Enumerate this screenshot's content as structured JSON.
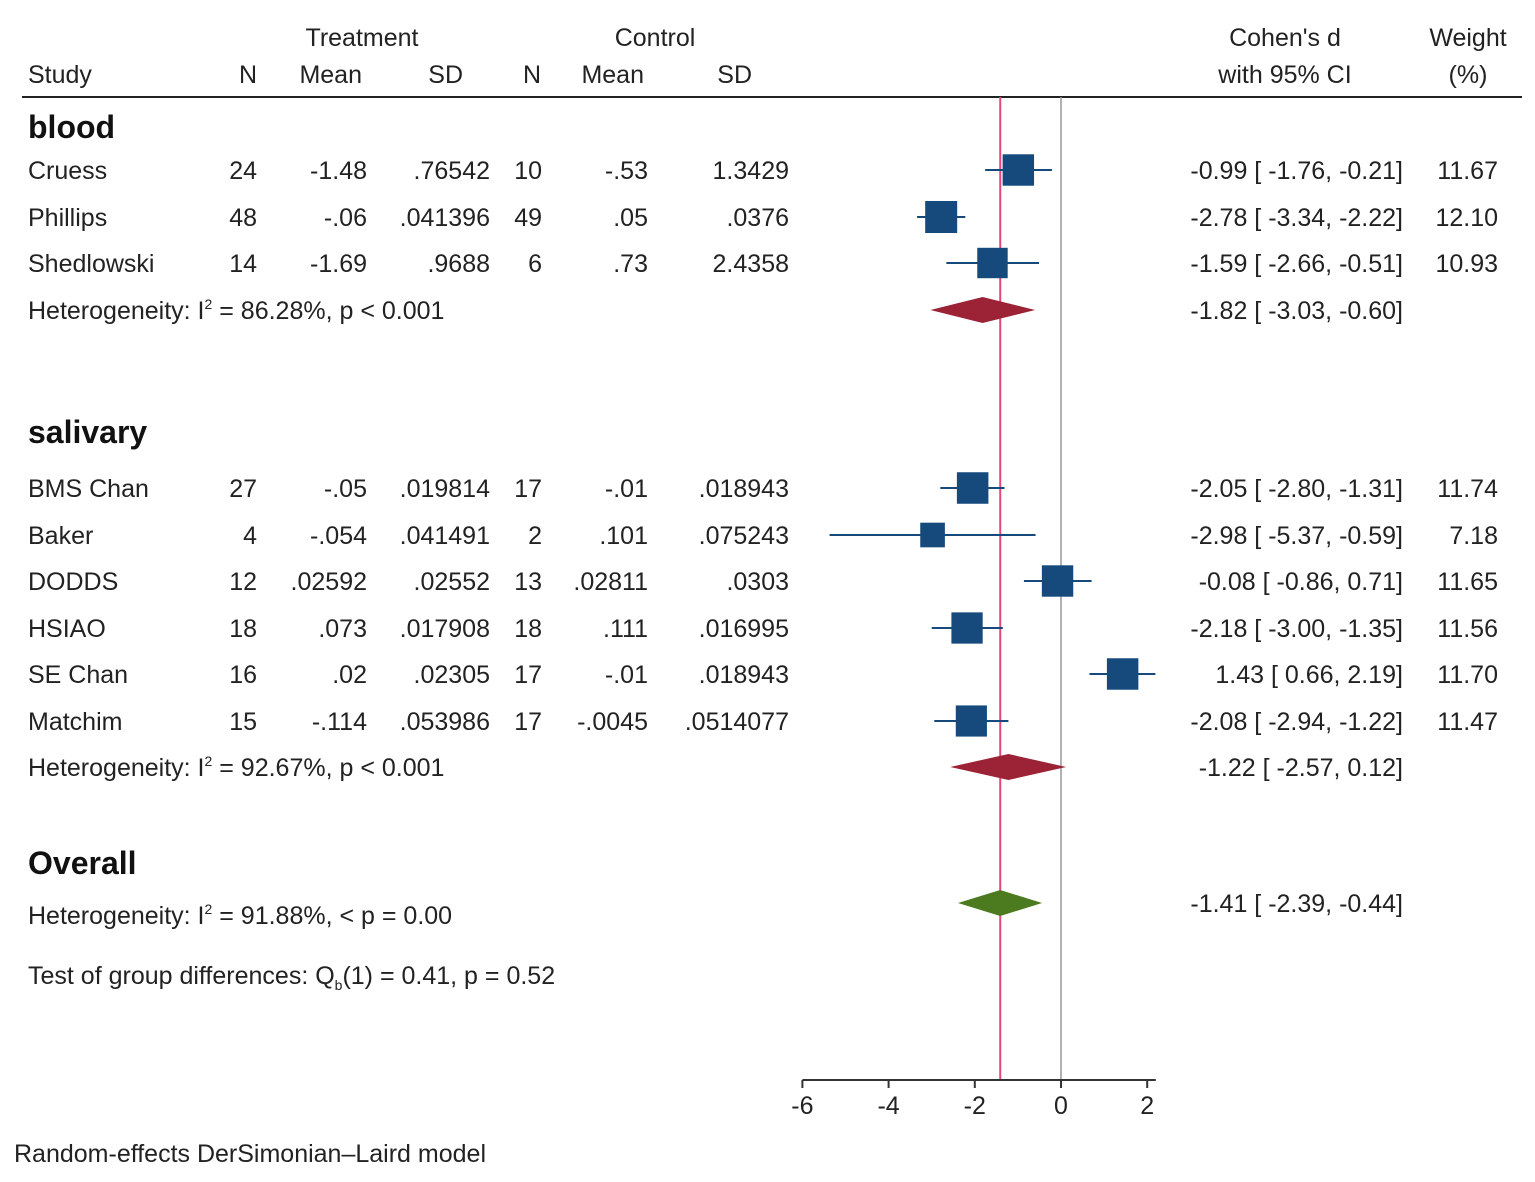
{
  "colors": {
    "square": "#174a7c",
    "group_diamond": "#9b2335",
    "overall_diamond": "#4b7a1f",
    "overall_line": "#e8457a",
    "null_line": "#999999"
  },
  "header": {
    "treatment": "Treatment",
    "control": "Control",
    "study": "Study",
    "n": "N",
    "mean": "Mean",
    "sd": "SD",
    "effect_1": "Cohen's d",
    "effect_2": "with 95% CI",
    "weight_1": "Weight",
    "weight_2": "(%)"
  },
  "chart_data": {
    "type": "forest",
    "xlim": [
      -6,
      2.2
    ],
    "xticks": [
      -6,
      -4,
      -2,
      0,
      2
    ],
    "xtick_labels": [
      "-6",
      "-4",
      "-2",
      "0",
      "2"
    ],
    "overall_effect": -1.41,
    "groups": [
      {
        "name": "blood",
        "studies": [
          {
            "name": "Cruess",
            "t_n": "24",
            "t_mean": "-1.48",
            "t_sd": ".76542",
            "c_n": "10",
            "c_mean": "-.53",
            "c_sd": "1.3429",
            "d": -0.99,
            "lo": -1.76,
            "hi": -0.21,
            "ci_label": "-0.99 [ -1.76, -0.21]",
            "weight": "11.67"
          },
          {
            "name": "Phillips",
            "t_n": "48",
            "t_mean": "-.06",
            "t_sd": ".041396",
            "c_n": "49",
            "c_mean": ".05",
            "c_sd": ".0376",
            "d": -2.78,
            "lo": -3.34,
            "hi": -2.22,
            "ci_label": "-2.78 [ -3.34, -2.22]",
            "weight": "12.10"
          },
          {
            "name": "Shedlowski",
            "t_n": "14",
            "t_mean": "-1.69",
            "t_sd": ".9688",
            "c_n": "6",
            "c_mean": ".73",
            "c_sd": "2.4358",
            "d": -1.59,
            "lo": -2.66,
            "hi": -0.51,
            "ci_label": "-1.59 [ -2.66, -0.51]",
            "weight": "10.93"
          }
        ],
        "heterogeneity": {
          "prefix": "Heterogeneity:  I",
          "sup": "2",
          "suffix": " = 86.28%, p < 0.001"
        },
        "pooled": {
          "d": -1.82,
          "lo": -3.03,
          "hi": -0.6,
          "ci_label": "-1.82 [ -3.03, -0.60]"
        }
      },
      {
        "name": "salivary",
        "studies": [
          {
            "name": "BMS Chan",
            "t_n": "27",
            "t_mean": "-.05",
            "t_sd": ".019814",
            "c_n": "17",
            "c_mean": "-.01",
            "c_sd": ".018943",
            "d": -2.05,
            "lo": -2.8,
            "hi": -1.31,
            "ci_label": "-2.05 [ -2.80, -1.31]",
            "weight": "11.74"
          },
          {
            "name": "Baker",
            "t_n": "4",
            "t_mean": "-.054",
            "t_sd": ".041491",
            "c_n": "2",
            "c_mean": ".101",
            "c_sd": ".075243",
            "d": -2.98,
            "lo": -5.37,
            "hi": -0.59,
            "ci_label": "-2.98 [ -5.37, -0.59]",
            "weight": "7.18"
          },
          {
            "name": "DODDS",
            "t_n": "12",
            "t_mean": ".02592",
            "t_sd": ".02552",
            "c_n": "13",
            "c_mean": ".02811",
            "c_sd": ".0303",
            "d": -0.08,
            "lo": -0.86,
            "hi": 0.71,
            "ci_label": "-0.08 [ -0.86,  0.71]",
            "weight": "11.65"
          },
          {
            "name": "HSIAO",
            "t_n": "18",
            "t_mean": ".073",
            "t_sd": ".017908",
            "c_n": "18",
            "c_mean": ".111",
            "c_sd": ".016995",
            "d": -2.18,
            "lo": -3.0,
            "hi": -1.35,
            "ci_label": "-2.18 [ -3.00, -1.35]",
            "weight": "11.56"
          },
          {
            "name": "SE Chan",
            "t_n": "16",
            "t_mean": ".02",
            "t_sd": ".02305",
            "c_n": "17",
            "c_mean": "-.01",
            "c_sd": ".018943",
            "d": 1.43,
            "lo": 0.66,
            "hi": 2.19,
            "ci_label": "1.43 [  0.66,  2.19]",
            "weight": "11.70"
          },
          {
            "name": "Matchim",
            "t_n": "15",
            "t_mean": "-.114",
            "t_sd": ".053986",
            "c_n": "17",
            "c_mean": "-.0045",
            "c_sd": ".0514077",
            "d": -2.08,
            "lo": -2.94,
            "hi": -1.22,
            "ci_label": "-2.08 [ -2.94, -1.22]",
            "weight": "11.47"
          }
        ],
        "heterogeneity": {
          "prefix": "Heterogeneity:  I",
          "sup": "2",
          "suffix": " = 92.67%, p < 0.001"
        },
        "pooled": {
          "d": -1.22,
          "lo": -2.57,
          "hi": 0.12,
          "ci_label": "-1.22 [ -2.57,  0.12]"
        }
      }
    ],
    "overall": {
      "label": "Overall",
      "d": -1.41,
      "lo": -2.39,
      "hi": -0.44,
      "ci_label": "-1.41 [ -2.39, -0.44]",
      "heterogeneity": {
        "prefix": "Heterogeneity:  I",
        "sup": "2",
        "suffix": " = 91.88%, < p = 0.00"
      },
      "test": {
        "prefix": "Test of group differences: Q",
        "sub": "b",
        "suffix": "(1) = 0.41, p = 0.52"
      }
    },
    "footnote": "Random-effects DerSimonian–Laird model"
  }
}
